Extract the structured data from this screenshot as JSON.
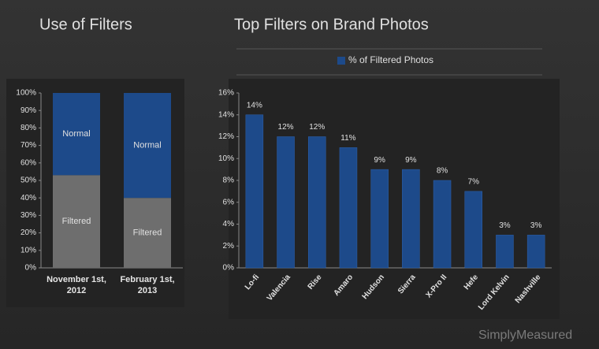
{
  "chart_data": [
    {
      "type": "stacked_bar",
      "title": "Use of Filters",
      "categories": [
        "November 1st, 2012",
        "February 1st, 2013"
      ],
      "series": [
        {
          "name": "Filtered",
          "color": "#6e6e6e",
          "values": [
            53,
            40
          ]
        },
        {
          "name": "Normal",
          "color": "#1d4a8a",
          "values": [
            47,
            60
          ]
        }
      ],
      "ylim": [
        0,
        100
      ],
      "yticks": [
        {
          "value": 0,
          "label": "0%"
        },
        {
          "value": 10,
          "label": "10%"
        },
        {
          "value": 20,
          "label": "20%"
        },
        {
          "value": 30,
          "label": "30%"
        },
        {
          "value": 40,
          "label": "40%"
        },
        {
          "value": 50,
          "label": "50%"
        },
        {
          "value": 60,
          "label": "60%"
        },
        {
          "value": 70,
          "label": "70%"
        },
        {
          "value": 80,
          "label": "80%"
        },
        {
          "value": 90,
          "label": "90%"
        },
        {
          "value": 100,
          "label": "100%"
        }
      ]
    },
    {
      "type": "bar",
      "title": "Top Filters on Brand Photos",
      "categories": [
        "Lo-fi",
        "Valencia",
        "Rise",
        "Amaro",
        "Hudson",
        "Sierra",
        "X-Pro II",
        "Hefe",
        "Lord Kelvin",
        "Nashville"
      ],
      "series": [
        {
          "name": "% of Filtered Photos",
          "color": "#1d4a8a",
          "values": [
            14,
            12,
            12,
            11,
            9,
            9,
            8,
            7,
            3,
            3
          ],
          "value_labels": [
            "14%",
            "12%",
            "12%",
            "11%",
            "9%",
            "9%",
            "8%",
            "7%",
            "3%",
            "3%"
          ]
        }
      ],
      "ylim": [
        0,
        16
      ],
      "yticks": [
        {
          "value": 0,
          "label": "0%"
        },
        {
          "value": 2,
          "label": "2%"
        },
        {
          "value": 4,
          "label": "4%"
        },
        {
          "value": 6,
          "label": "6%"
        },
        {
          "value": 8,
          "label": "8%"
        },
        {
          "value": 10,
          "label": "10%"
        },
        {
          "value": 12,
          "label": "12%"
        },
        {
          "value": 14,
          "label": "14%"
        },
        {
          "value": 16,
          "label": "16%"
        }
      ],
      "legend": "top"
    }
  ],
  "watermark": "SimplyMeasured"
}
